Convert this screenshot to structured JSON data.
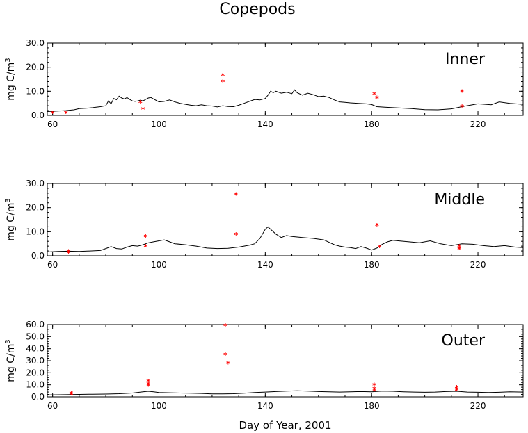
{
  "chart_data": {
    "type": "line",
    "title": "Copepods",
    "xlabel": "Day of Year, 2001",
    "ylabel_prefix": "mg C/m",
    "ylabel_superscript": "3",
    "xlim": [
      58,
      237
    ],
    "xticks": [
      60,
      100,
      140,
      180,
      220
    ],
    "marker_color": "#ff0000",
    "line_color": "#000000",
    "panels": [
      {
        "name": "Inner",
        "ylim": [
          0,
          30
        ],
        "yticks": [
          "0.0",
          "10.0",
          "20.0",
          "30.0"
        ],
        "series": [
          {
            "type": "line",
            "x": [
              58,
              62,
              65,
              68,
              70,
              73,
              75,
              78,
              80,
              81,
              82,
              83,
              84,
              85,
              86,
              87,
              88,
              89,
              90,
              91,
              92,
              93,
              94,
              95,
              96,
              97,
              98,
              100,
              102,
              104,
              106,
              108,
              110,
              112,
              114,
              116,
              118,
              120,
              122,
              124,
              126,
              128,
              130,
              132,
              134,
              136,
              138,
              140,
              141,
              142,
              143,
              144,
              146,
              148,
              150,
              151,
              152,
              154,
              156,
              158,
              160,
              162,
              164,
              166,
              168,
              170,
              172,
              175,
              178,
              180,
              182,
              185,
              190,
              195,
              200,
              205,
              210,
              215,
              220,
              225,
              228,
              232,
              237
            ],
            "y": [
              1.6,
              1.8,
              2.0,
              2.3,
              2.8,
              3.0,
              3.2,
              3.6,
              4.0,
              6.0,
              4.8,
              7.0,
              6.5,
              8.0,
              7.2,
              6.8,
              7.4,
              6.6,
              6.0,
              5.8,
              6.0,
              6.3,
              6.0,
              6.6,
              7.2,
              7.4,
              6.8,
              5.6,
              5.8,
              6.4,
              5.6,
              5.0,
              4.6,
              4.2,
              4.0,
              4.4,
              4.0,
              3.9,
              3.5,
              4.0,
              3.7,
              3.6,
              4.2,
              5.0,
              5.8,
              6.6,
              6.4,
              7.0,
              8.4,
              10.0,
              9.4,
              10.0,
              9.2,
              9.6,
              9.0,
              10.6,
              9.4,
              8.4,
              9.2,
              8.6,
              7.8,
              8.0,
              7.4,
              6.4,
              5.6,
              5.4,
              5.2,
              5.0,
              4.8,
              4.5,
              3.6,
              3.4,
              3.1,
              2.8,
              2.4,
              2.3,
              2.7,
              3.8,
              4.8,
              4.4,
              5.6,
              5.0,
              4.6
            ]
          },
          {
            "type": "scatter",
            "x": [
              60,
              65,
              93,
              94,
              124,
              124,
              181,
              182,
              214,
              214
            ],
            "y": [
              0.8,
              0.9,
              5.2,
              2.4,
              16.4,
              13.8,
              8.6,
              7.0,
              9.6,
              3.4
            ]
          }
        ]
      },
      {
        "name": "Middle",
        "ylim": [
          0,
          30
        ],
        "yticks": [
          "0.0",
          "10.0",
          "20.0",
          "30.0"
        ],
        "series": [
          {
            "type": "line",
            "x": [
              58,
              62,
              66,
              70,
              74,
              78,
              80,
              82,
              84,
              86,
              88,
              90,
              92,
              94,
              96,
              98,
              100,
              102,
              104,
              106,
              110,
              114,
              118,
              122,
              126,
              130,
              134,
              136,
              138,
              140,
              141,
              142,
              144,
              146,
              148,
              150,
              154,
              158,
              162,
              166,
              168,
              170,
              172,
              174,
              176,
              178,
              180,
              182,
              184,
              186,
              188,
              190,
              194,
              198,
              202,
              206,
              210,
              214,
              218,
              222,
              226,
              230,
              234,
              237
            ],
            "y": [
              1.6,
              1.8,
              1.9,
              1.8,
              2.0,
              2.2,
              3.0,
              3.8,
              3.0,
              2.8,
              3.6,
              4.2,
              4.0,
              4.6,
              5.4,
              5.8,
              6.2,
              6.6,
              5.8,
              5.0,
              4.6,
              4.0,
              3.2,
              3.0,
              3.1,
              3.6,
              4.4,
              5.0,
              7.2,
              11.0,
              12.0,
              11.0,
              9.0,
              7.6,
              8.4,
              8.0,
              7.6,
              7.2,
              6.6,
              4.6,
              4.0,
              3.6,
              3.4,
              3.0,
              3.8,
              3.2,
              2.4,
              3.2,
              4.8,
              5.8,
              6.4,
              6.2,
              5.8,
              5.4,
              6.2,
              5.0,
              4.2,
              5.0,
              4.8,
              4.2,
              3.8,
              4.2,
              3.6,
              3.4
            ]
          },
          {
            "type": "scatter",
            "x": [
              66,
              66,
              95,
              95,
              129,
              129,
              182,
              183,
              213,
              213,
              213
            ],
            "y": [
              1.6,
              1.0,
              7.8,
              3.8,
              25.2,
              8.6,
              12.4,
              3.4,
              3.8,
              2.6,
              3.0
            ]
          }
        ]
      },
      {
        "name": "Outer",
        "ylim": [
          0,
          60
        ],
        "yticks": [
          "0.0",
          "10.0",
          "20.0",
          "30.0",
          "40.0",
          "50.0",
          "60.0"
        ],
        "series": [
          {
            "type": "line",
            "x": [
              58,
              65,
              70,
              75,
              80,
              85,
              90,
              94,
              96,
              98,
              100,
              104,
              108,
              112,
              116,
              120,
              124,
              128,
              132,
              136,
              140,
              144,
              148,
              152,
              156,
              160,
              164,
              168,
              172,
              176,
              180,
              184,
              188,
              192,
              196,
              200,
              204,
              208,
              212,
              216,
              220,
              224,
              228,
              232,
              237
            ],
            "y": [
              1.6,
              1.8,
              2.0,
              2.2,
              2.3,
              2.6,
              3.2,
              4.2,
              4.6,
              4.2,
              3.6,
              3.4,
              3.2,
              3.0,
              2.8,
              2.4,
              2.4,
              2.6,
              3.0,
              3.6,
              4.0,
              4.4,
              4.8,
              5.0,
              4.8,
              4.4,
              4.2,
              4.0,
              4.2,
              4.4,
              4.2,
              4.8,
              4.6,
              4.2,
              4.0,
              3.8,
              4.0,
              4.4,
              4.6,
              4.0,
              3.8,
              3.6,
              3.8,
              4.2,
              4.0
            ]
          },
          {
            "type": "scatter",
            "x": [
              67,
              67,
              96,
              96,
              96,
              125,
              125,
              126,
              181,
              181,
              181,
              212,
              212,
              212
            ],
            "y": [
              2.6,
              1.8,
              12.6,
              10.4,
              9.0,
              58.8,
              34.6,
              27.4,
              9.4,
              6.4,
              4.8,
              7.6,
              6.2,
              5.2
            ]
          }
        ]
      }
    ]
  }
}
